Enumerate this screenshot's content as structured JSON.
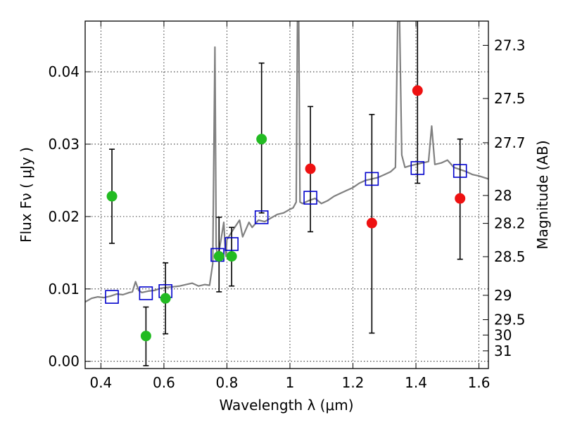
{
  "chart_data": {
    "type": "scatter",
    "xlabel": "Wavelength  λ (μm)",
    "ylabel": "Flux  Fν  ( μJy )",
    "ylabel_right": "Magnitude (AB)",
    "xlim": [
      0.35,
      1.63
    ],
    "ylim": [
      -0.001,
      0.047
    ],
    "grid": true,
    "x_ticks": [
      {
        "value": 0.4,
        "label": "0.4"
      },
      {
        "value": 0.6,
        "label": "0.6"
      },
      {
        "value": 0.8,
        "label": "0.8"
      },
      {
        "value": 1.0,
        "label": "1"
      },
      {
        "value": 1.2,
        "label": "1.2"
      },
      {
        "value": 1.4,
        "label": "1.4"
      },
      {
        "value": 1.6,
        "label": "1.6"
      }
    ],
    "y_ticks": [
      {
        "value": 0.0,
        "label": "0.00"
      },
      {
        "value": 0.01,
        "label": "0.01"
      },
      {
        "value": 0.02,
        "label": "0.02"
      },
      {
        "value": 0.03,
        "label": "0.03"
      },
      {
        "value": 0.04,
        "label": "0.04"
      }
    ],
    "right_ticks": [
      {
        "mag": 27.3,
        "label": "27.3"
      },
      {
        "mag": 27.5,
        "label": "27.5"
      },
      {
        "mag": 27.7,
        "label": "27.7"
      },
      {
        "mag": 28.0,
        "label": "28"
      },
      {
        "mag": 28.2,
        "label": "28.2"
      },
      {
        "mag": 28.5,
        "label": "28.5"
      },
      {
        "mag": 29.0,
        "label": "29"
      },
      {
        "mag": 29.5,
        "label": "29.5"
      },
      {
        "mag": 30.0,
        "label": "30"
      },
      {
        "mag": 31.0,
        "label": "31"
      }
    ],
    "series": [
      {
        "name": "model-spectrum",
        "kind": "line",
        "color": "#808080",
        "x": [
          0.35,
          0.37,
          0.39,
          0.41,
          0.43,
          0.45,
          0.47,
          0.49,
          0.5,
          0.51,
          0.52,
          0.53,
          0.55,
          0.57,
          0.59,
          0.61,
          0.63,
          0.65,
          0.67,
          0.69,
          0.71,
          0.73,
          0.745,
          0.755,
          0.762,
          0.766,
          0.77,
          0.775,
          0.785,
          0.79,
          0.794,
          0.797,
          0.8,
          0.82,
          0.84,
          0.85,
          0.86,
          0.87,
          0.88,
          0.9,
          0.92,
          0.94,
          0.96,
          0.98,
          1.0,
          1.01,
          1.02,
          1.024,
          1.028,
          1.032,
          1.04,
          1.06,
          1.08,
          1.1,
          1.12,
          1.14,
          1.16,
          1.18,
          1.2,
          1.22,
          1.24,
          1.26,
          1.28,
          1.3,
          1.32,
          1.335,
          1.342,
          1.348,
          1.355,
          1.365,
          1.38,
          1.4,
          1.42,
          1.44,
          1.45,
          1.46,
          1.48,
          1.5,
          1.52,
          1.54,
          1.56,
          1.58,
          1.6,
          1.63
        ],
        "y": [
          0.0082,
          0.0087,
          0.0089,
          0.0088,
          0.009,
          0.0093,
          0.0092,
          0.0095,
          0.0096,
          0.011,
          0.0098,
          0.0095,
          0.0097,
          0.0098,
          0.0101,
          0.0102,
          0.0103,
          0.0104,
          0.0106,
          0.0108,
          0.0104,
          0.0106,
          0.0105,
          0.0135,
          0.0434,
          0.016,
          0.0145,
          0.0152,
          0.0178,
          0.0192,
          0.016,
          0.0145,
          0.0168,
          0.0182,
          0.0195,
          0.0172,
          0.0182,
          0.0192,
          0.0185,
          0.0195,
          0.0193,
          0.0198,
          0.0203,
          0.0205,
          0.021,
          0.0212,
          0.022,
          0.047,
          0.047,
          0.022,
          0.0218,
          0.0222,
          0.0225,
          0.0218,
          0.0222,
          0.0228,
          0.0232,
          0.0236,
          0.024,
          0.0246,
          0.025,
          0.0252,
          0.0254,
          0.0258,
          0.0262,
          0.0268,
          0.047,
          0.047,
          0.0285,
          0.0268,
          0.027,
          0.0272,
          0.0274,
          0.0276,
          0.0325,
          0.0272,
          0.0274,
          0.0278,
          0.0268,
          0.0265,
          0.0262,
          0.0258,
          0.0256,
          0.0252
        ]
      },
      {
        "name": "model-photometry",
        "kind": "open-square",
        "color": "#0000cc",
        "x": [
          0.435,
          0.543,
          0.605,
          0.77,
          0.815,
          0.91,
          1.065,
          1.26,
          1.405,
          1.54
        ],
        "y": [
          0.0089,
          0.0094,
          0.0097,
          0.0147,
          0.0162,
          0.0199,
          0.0226,
          0.0252,
          0.0267,
          0.0263
        ]
      },
      {
        "name": "observed-green",
        "kind": "filled-circle",
        "color": "#22bb22",
        "x": [
          0.435,
          0.543,
          0.605,
          0.775,
          0.815,
          0.91
        ],
        "y": [
          0.0228,
          0.0035,
          0.0087,
          0.0145,
          0.0145,
          0.0307
        ],
        "yerr_low": [
          0.0163,
          -0.0006,
          0.0038,
          0.0096,
          0.0104,
          0.0205
        ],
        "yerr_high": [
          0.0293,
          0.0075,
          0.0136,
          0.0199,
          0.0185,
          0.0412
        ]
      },
      {
        "name": "observed-red",
        "kind": "filled-circle",
        "color": "#ee1111",
        "x": [
          1.065,
          1.26,
          1.405,
          1.54
        ],
        "y": [
          0.0266,
          0.0191,
          0.0374,
          0.0225
        ],
        "yerr_low": [
          0.0179,
          0.0039,
          0.0246,
          0.0141
        ],
        "yerr_high": [
          0.0352,
          0.0341,
          0.047,
          0.0307
        ]
      }
    ]
  }
}
